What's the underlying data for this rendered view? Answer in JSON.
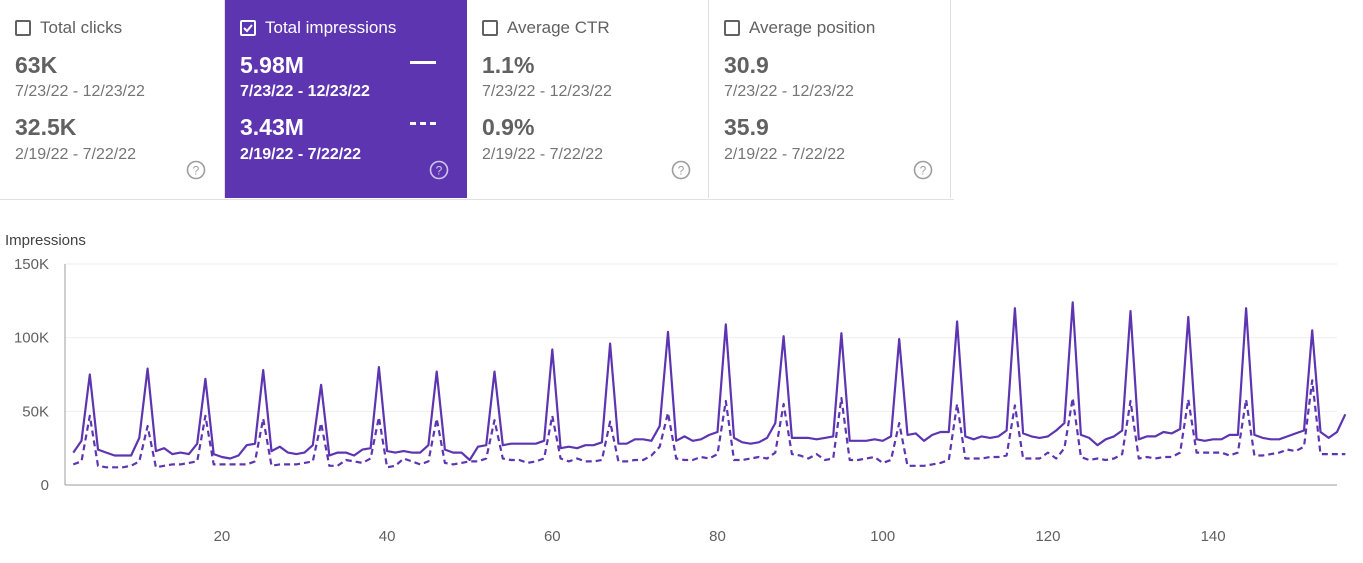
{
  "cards": [
    {
      "label": "Total clicks",
      "checked": false,
      "current_value": "63K",
      "current_range": "7/23/22 - 12/23/22",
      "previous_value": "32.5K",
      "previous_range": "2/19/22 - 7/22/22"
    },
    {
      "label": "Total impressions",
      "checked": true,
      "current_value": "5.98M",
      "current_range": "7/23/22 - 12/23/22",
      "previous_value": "3.43M",
      "previous_range": "2/19/22 - 7/22/22"
    },
    {
      "label": "Average CTR",
      "checked": false,
      "current_value": "1.1%",
      "current_range": "7/23/22 - 12/23/22",
      "previous_value": "0.9%",
      "previous_range": "2/19/22 - 7/22/22"
    },
    {
      "label": "Average position",
      "checked": false,
      "current_value": "30.9",
      "current_range": "7/23/22 - 12/23/22",
      "previous_value": "35.9",
      "previous_range": "2/19/22 - 7/22/22"
    }
  ],
  "colors": {
    "accent": "#5e35b1",
    "line": "#5e35b1"
  },
  "chart_data": {
    "type": "line",
    "ylabel": "Impressions",
    "ylim": [
      0,
      150000
    ],
    "xlim": [
      1,
      155
    ],
    "y_ticks": [
      {
        "value": 0,
        "label": "0"
      },
      {
        "value": 50000,
        "label": "50K"
      },
      {
        "value": 100000,
        "label": "100K"
      },
      {
        "value": 150000,
        "label": "150K"
      }
    ],
    "x_ticks": [
      20,
      40,
      60,
      80,
      100,
      120,
      140
    ],
    "grid": true,
    "series": [
      {
        "style": "solid",
        "x_start": 2,
        "values": [
          22000,
          30000,
          75000,
          24000,
          22000,
          20000,
          20000,
          20000,
          32000,
          79000,
          23000,
          25000,
          21000,
          22000,
          21000,
          28000,
          72000,
          21000,
          19000,
          18000,
          20000,
          27000,
          28000,
          78000,
          23000,
          26000,
          22000,
          21000,
          22000,
          27000,
          68000,
          20000,
          22000,
          22000,
          20000,
          24000,
          25000,
          80000,
          23000,
          22000,
          23000,
          22000,
          22000,
          27000,
          77000,
          24000,
          22000,
          22000,
          17000,
          26000,
          27000,
          77000,
          27000,
          28000,
          28000,
          28000,
          28000,
          30000,
          92000,
          25000,
          26000,
          25000,
          27000,
          27000,
          29000,
          96000,
          28000,
          28000,
          31000,
          31000,
          30000,
          40000,
          104000,
          30000,
          33000,
          30000,
          31000,
          34000,
          36000,
          109000,
          32000,
          29000,
          28000,
          29000,
          32000,
          42000,
          101000,
          32000,
          32000,
          32000,
          31000,
          32000,
          33000,
          103000,
          30000,
          30000,
          30000,
          31000,
          30000,
          33000,
          99000,
          34000,
          35000,
          30000,
          34000,
          36000,
          36000,
          111000,
          33000,
          31000,
          33000,
          32000,
          33000,
          37000,
          120000,
          35000,
          33000,
          32000,
          33000,
          37000,
          42000,
          124000,
          34000,
          32000,
          27000,
          31000,
          33000,
          37000,
          118000,
          31000,
          33000,
          33000,
          36000,
          35000,
          38000,
          114000,
          31000,
          30000,
          31000,
          31000,
          34000,
          34000,
          120000,
          34000,
          32000,
          31000,
          31000,
          33000,
          35000,
          37000,
          105000,
          36000,
          32000,
          36000,
          48000
        ]
      },
      {
        "style": "dashed",
        "x_start": 2,
        "values": [
          14000,
          16000,
          47000,
          13000,
          12000,
          12000,
          12000,
          13000,
          16000,
          40000,
          12000,
          13000,
          14000,
          14000,
          15000,
          16000,
          47000,
          14000,
          14000,
          14000,
          14000,
          14000,
          16000,
          45000,
          13000,
          14000,
          14000,
          14000,
          15000,
          16000,
          42000,
          13000,
          13000,
          17000,
          16000,
          15000,
          18000,
          46000,
          12000,
          13000,
          18000,
          16000,
          14000,
          16000,
          45000,
          15000,
          14000,
          15000,
          16000,
          16000,
          18000,
          44000,
          18000,
          17000,
          17000,
          15000,
          16000,
          18000,
          47000,
          18000,
          16000,
          18000,
          16000,
          16000,
          17000,
          43000,
          16000,
          16000,
          17000,
          17000,
          20000,
          26000,
          49000,
          18000,
          17000,
          17000,
          19000,
          18000,
          21000,
          57000,
          17000,
          17000,
          18000,
          19000,
          18000,
          22000,
          55000,
          21000,
          20000,
          18000,
          21000,
          17000,
          18000,
          59000,
          17000,
          17000,
          18000,
          19000,
          15000,
          17000,
          42000,
          13000,
          13000,
          13000,
          14000,
          15000,
          17000,
          55000,
          18000,
          18000,
          18000,
          19000,
          19000,
          20000,
          54000,
          18000,
          18000,
          18000,
          22000,
          18000,
          25000,
          59000,
          19000,
          17000,
          18000,
          17000,
          18000,
          21000,
          57000,
          18000,
          19000,
          18000,
          19000,
          19000,
          22000,
          58000,
          22000,
          22000,
          22000,
          22000,
          20000,
          22000,
          58000,
          20000,
          20000,
          21000,
          22000,
          24000,
          23000,
          26000,
          71000,
          21000,
          21000,
          21000,
          21000
        ]
      }
    ]
  }
}
